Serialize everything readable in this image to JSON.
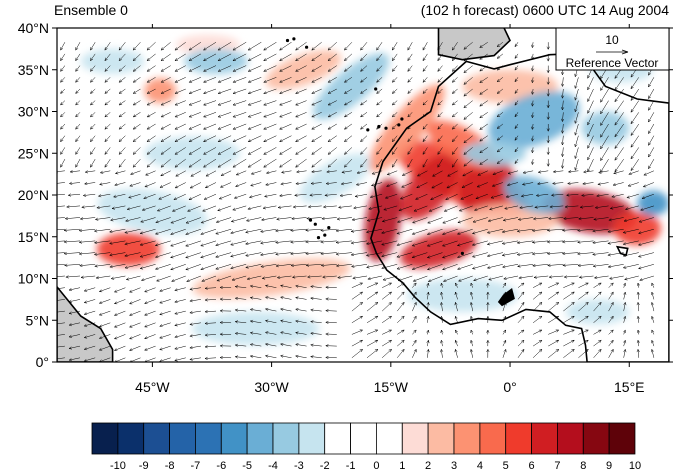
{
  "header": {
    "left_title": "Ensemble 0",
    "right_title": "(102 h forecast) 0600 UTC 14 Aug 2004"
  },
  "map": {
    "lon_range": [
      -57,
      20
    ],
    "lat_range": [
      0,
      40
    ],
    "lat_ticks": [
      {
        "value": 0,
        "label": "0°"
      },
      {
        "value": 5,
        "label": "5°N"
      },
      {
        "value": 10,
        "label": "10°N"
      },
      {
        "value": 15,
        "label": "15°N"
      },
      {
        "value": 20,
        "label": "20°N"
      },
      {
        "value": 25,
        "label": "25°N"
      },
      {
        "value": 30,
        "label": "30°N"
      },
      {
        "value": 35,
        "label": "35°N"
      },
      {
        "value": 40,
        "label": "40°N"
      }
    ],
    "lon_ticks": [
      {
        "value": -45,
        "label": "45°W"
      },
      {
        "value": -30,
        "label": "30°W"
      },
      {
        "value": -15,
        "label": "15°W"
      },
      {
        "value": 0,
        "label": "0°"
      },
      {
        "value": 15,
        "label": "15°E"
      }
    ],
    "reference_vector": {
      "magnitude_label": "10",
      "caption": "Reference Vector"
    },
    "land_color": "#c8c8c8",
    "coast_color": "#000000",
    "anomalies": [
      {
        "lon": -6,
        "lat": 22,
        "rx": 9,
        "ry": 3,
        "rot": -25,
        "v": 6
      },
      {
        "lon": -10,
        "lat": 21,
        "rx": 5,
        "ry": 2.5,
        "rot": 50,
        "v": 7
      },
      {
        "lon": -3,
        "lat": 21,
        "rx": 4,
        "ry": 3,
        "rot": 45,
        "v": 7
      },
      {
        "lon": -16,
        "lat": 17,
        "rx": 2.2,
        "ry": 5,
        "rot": -10,
        "v": 8
      },
      {
        "lon": -9,
        "lat": 13.5,
        "rx": 5,
        "ry": 2,
        "rot": 15,
        "v": 7
      },
      {
        "lon": 10,
        "lat": 18,
        "rx": 6,
        "ry": 2.5,
        "rot": -10,
        "v": 8
      },
      {
        "lon": 16,
        "lat": 16,
        "rx": 3,
        "ry": 2,
        "rot": 0,
        "v": 6
      },
      {
        "lon": 0,
        "lat": 17,
        "rx": 6,
        "ry": 2,
        "rot": 0,
        "v": 3
      },
      {
        "lon": -13,
        "lat": 28,
        "rx": 7,
        "ry": 2,
        "rot": 50,
        "v": 4
      },
      {
        "lon": 0,
        "lat": 33,
        "rx": 6,
        "ry": 2,
        "rot": 0,
        "v": 3
      },
      {
        "lon": -6,
        "lat": 26,
        "rx": 5,
        "ry": 2,
        "rot": -30,
        "v": 5
      },
      {
        "lon": -48,
        "lat": 13.5,
        "rx": 4,
        "ry": 2,
        "rot": 0,
        "v": 6
      },
      {
        "lon": -30,
        "lat": 10,
        "rx": 10,
        "ry": 2,
        "rot": 8,
        "v": 3
      },
      {
        "lon": -26,
        "lat": 35,
        "rx": 5,
        "ry": 1.8,
        "rot": 20,
        "v": 3
      },
      {
        "lon": -44,
        "lat": 32.5,
        "rx": 2,
        "ry": 1.5,
        "rot": 0,
        "v": 4
      },
      {
        "lon": -38,
        "lat": 38,
        "rx": 4,
        "ry": 1.2,
        "rot": 0,
        "v": 2
      },
      {
        "lon": 3,
        "lat": 29,
        "rx": 6,
        "ry": 3,
        "rot": 20,
        "v": -4
      },
      {
        "lon": -2,
        "lat": 25,
        "rx": 4,
        "ry": 1.5,
        "rot": 0,
        "v": -3
      },
      {
        "lon": 3,
        "lat": 20,
        "rx": 4,
        "ry": 2,
        "rot": -20,
        "v": -4
      },
      {
        "lon": 12,
        "lat": 28,
        "rx": 3,
        "ry": 2,
        "rot": 0,
        "v": -3
      },
      {
        "lon": 18,
        "lat": 19,
        "rx": 2,
        "ry": 1.5,
        "rot": 0,
        "v": -5
      },
      {
        "lon": -6,
        "lat": 8,
        "rx": 7,
        "ry": 2,
        "rot": 0,
        "v": -2
      },
      {
        "lon": 11,
        "lat": 6,
        "rx": 4,
        "ry": 1.5,
        "rot": 0,
        "v": -2
      },
      {
        "lon": -20,
        "lat": 33,
        "rx": 6,
        "ry": 2,
        "rot": 40,
        "v": -3
      },
      {
        "lon": -37,
        "lat": 36,
        "rx": 4,
        "ry": 1.5,
        "rot": 0,
        "v": -3
      },
      {
        "lon": -50,
        "lat": 36,
        "rx": 4,
        "ry": 1.5,
        "rot": 0,
        "v": -2
      },
      {
        "lon": -40,
        "lat": 25,
        "rx": 6,
        "ry": 2,
        "rot": 0,
        "v": -2
      },
      {
        "lon": -45,
        "lat": 18,
        "rx": 7,
        "ry": 2.5,
        "rot": -10,
        "v": -2
      },
      {
        "lon": -32,
        "lat": 4,
        "rx": 8,
        "ry": 2,
        "rot": 0,
        "v": -2
      },
      {
        "lon": -22,
        "lat": 22,
        "rx": 5,
        "ry": 2,
        "rot": 30,
        "v": -2
      },
      {
        "lon": 14,
        "lat": 35,
        "rx": 4,
        "ry": 1.5,
        "rot": 0,
        "v": -2
      }
    ]
  },
  "colorbar": {
    "labels": [
      "-10",
      "-9",
      "-8",
      "-7",
      "-6",
      "-5",
      "-4",
      "-3",
      "-2",
      "-1",
      "0",
      "1",
      "2",
      "3",
      "4",
      "5",
      "6",
      "7",
      "8",
      "9",
      "10"
    ],
    "colors": [
      "#08204e",
      "#0b306b",
      "#1c4f93",
      "#2463a8",
      "#2c72b4",
      "#4192c6",
      "#6aaed5",
      "#97cae1",
      "#c6e4ef",
      "#ffffff",
      "#ffffff",
      "#ffffff",
      "#fddcd6",
      "#fcbba3",
      "#fc9272",
      "#f96a4d",
      "#ef3b2c",
      "#d01e22",
      "#b40e1d",
      "#860711",
      "#5e0209"
    ]
  }
}
